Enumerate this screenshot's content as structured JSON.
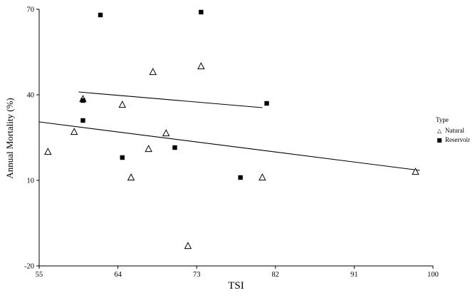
{
  "chart_data": {
    "type": "scatter",
    "title": "",
    "xlabel": "TSI",
    "ylabel": "Annual Mortality (%)",
    "xlim": [
      55,
      100
    ],
    "ylim": [
      -20,
      70
    ],
    "xticks": [
      55,
      64,
      73,
      82,
      91,
      100
    ],
    "yticks": [
      -20,
      10,
      40,
      70
    ],
    "grid": false,
    "legend": {
      "title": "Type",
      "position": "right",
      "items": [
        {
          "label": "Natural",
          "marker": "triangle-open",
          "glyph": "△"
        },
        {
          "label": "Reservoir",
          "marker": "square-filled",
          "glyph": "■"
        }
      ]
    },
    "series": [
      {
        "name": "Natural",
        "marker": "triangle-open",
        "color": "#000000",
        "points": [
          [
            56,
            20
          ],
          [
            59,
            27
          ],
          [
            60,
            38.5
          ],
          [
            64.5,
            36.5
          ],
          [
            68,
            48
          ],
          [
            73.5,
            50
          ],
          [
            65.5,
            11
          ],
          [
            67.5,
            21
          ],
          [
            69.5,
            26.5
          ],
          [
            72,
            -13
          ],
          [
            80.5,
            11
          ],
          [
            98,
            13
          ]
        ]
      },
      {
        "name": "Reservoir",
        "marker": "square-filled",
        "color": "#000000",
        "points": [
          [
            62,
            68
          ],
          [
            73.5,
            69
          ],
          [
            60,
            38
          ],
          [
            60,
            31
          ],
          [
            81,
            37
          ],
          [
            64.5,
            18
          ],
          [
            70.5,
            21.5
          ],
          [
            78,
            11
          ]
        ]
      }
    ],
    "fit_lines": [
      {
        "name": "reservoir-fit",
        "x1": 59.5,
        "y1": 41,
        "x2": 80.5,
        "y2": 35.5
      },
      {
        "name": "natural-fit",
        "x1": 55,
        "y1": 30.5,
        "x2": 98.5,
        "y2": 13.5
      }
    ],
    "colors": {
      "axis": "#000000",
      "marker": "#000000",
      "background": "#ffffff"
    }
  }
}
